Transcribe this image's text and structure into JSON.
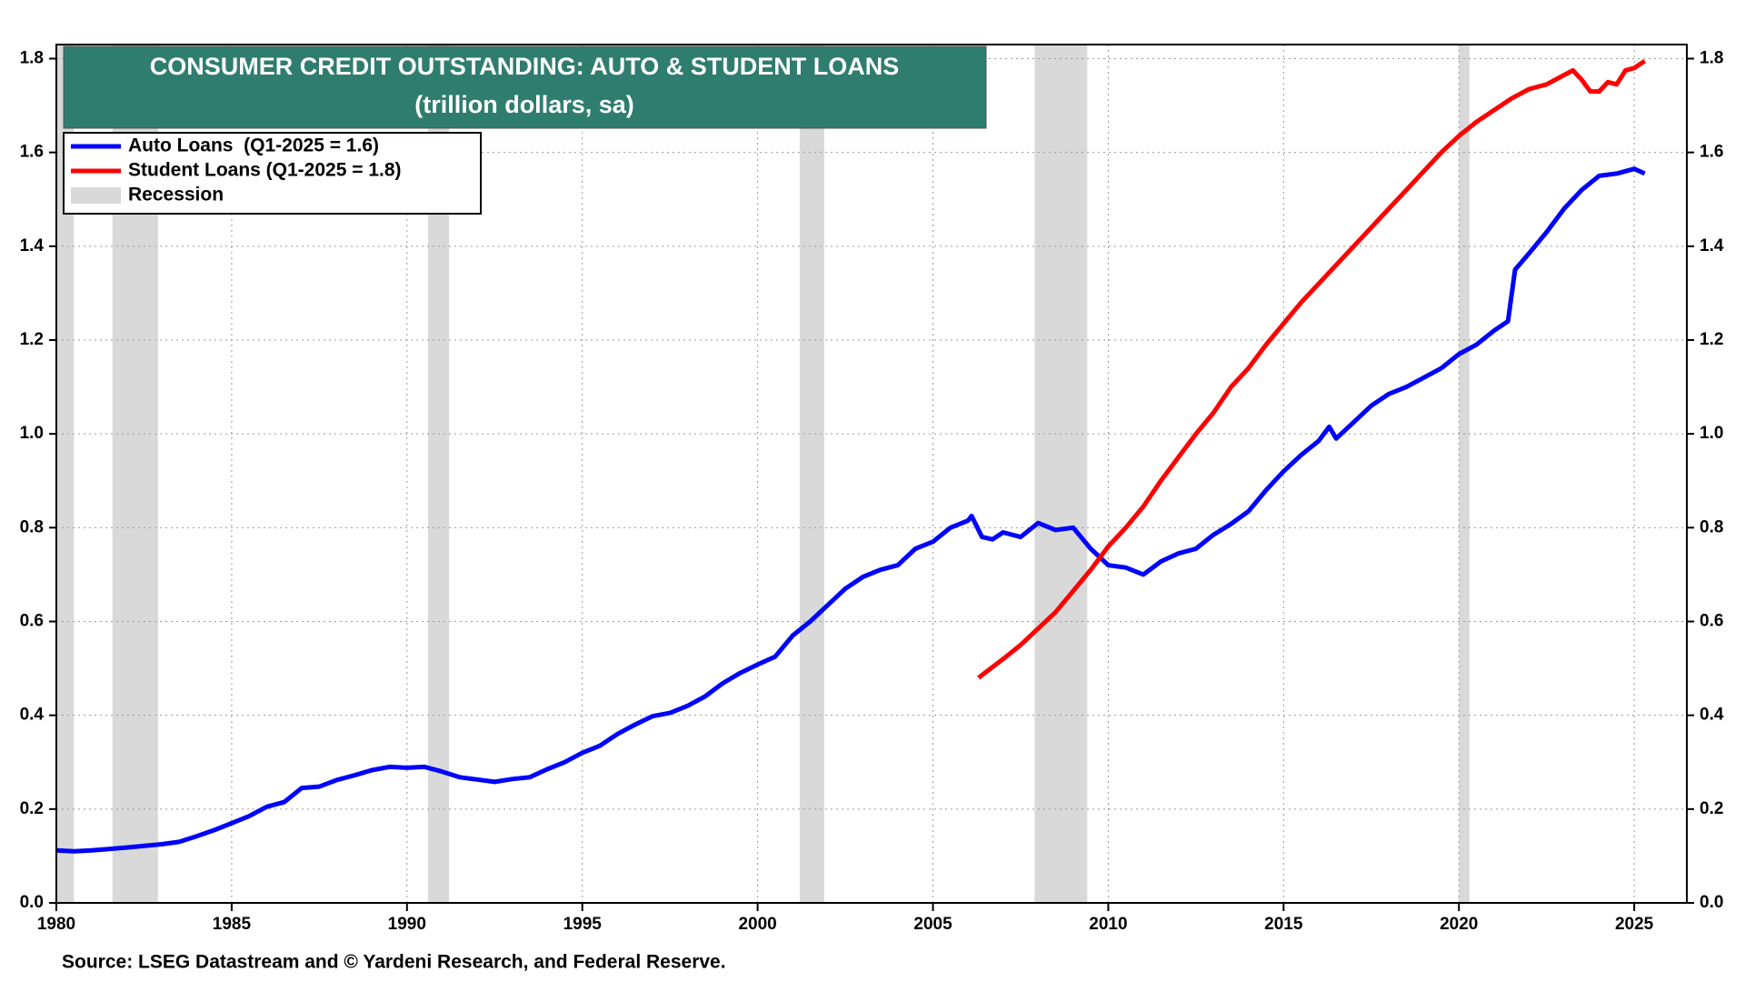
{
  "chart_data": {
    "type": "line",
    "title": "CONSUMER CREDIT OUTSTANDING: AUTO & STUDENT LOANS",
    "subtitle": "(trillion dollars, sa)",
    "source": "Source: LSEG Datastream and © Yardeni Research, and Federal Reserve.",
    "xlim": [
      1980,
      2026.5
    ],
    "xticks": [
      1980,
      1985,
      1990,
      1995,
      2000,
      2005,
      2010,
      2015,
      2020,
      2025
    ],
    "ylim": [
      0,
      1.83
    ],
    "yticks": [
      {
        "value": 0,
        "label": "0.0"
      },
      0.2,
      0.4,
      0.6,
      0.8,
      {
        "value": 1,
        "label": "1.0"
      },
      1.2,
      1.4,
      1.6,
      1.8
    ],
    "y2lim": [
      0,
      1.83
    ],
    "y2ticks": [
      {
        "value": 0,
        "label": "0.0"
      },
      0.2,
      0.4,
      0.6,
      0.8,
      {
        "value": 1,
        "label": "1.0"
      },
      1.2,
      1.4,
      1.6,
      1.8
    ],
    "grid": true,
    "legend": "upper left",
    "recession": {
      "name": "Recession",
      "color": "#d9d9d9",
      "periods": [
        [
          1980.0,
          1980.5
        ],
        [
          1981.6,
          1982.9
        ],
        [
          1990.6,
          1991.2
        ],
        [
          2001.2,
          2001.9
        ],
        [
          2007.9,
          2009.4
        ],
        [
          2020.0,
          2020.3
        ]
      ]
    },
    "series": [
      {
        "name": "Auto Loans  (Q1-2025 = 1.6)",
        "color": "#0000ff",
        "x": [
          1980.0,
          1980.5,
          1981.0,
          1981.5,
          1982.0,
          1983.0,
          1983.5,
          1984.0,
          1984.5,
          1985.0,
          1985.5,
          1986.0,
          1986.5,
          1987.0,
          1987.5,
          1988.0,
          1988.5,
          1989.0,
          1989.5,
          1990.0,
          1990.5,
          1991.0,
          1991.5,
          1992.0,
          1992.5,
          1993.0,
          1993.5,
          1994.0,
          1994.5,
          1995.0,
          1995.5,
          1996.0,
          1996.5,
          1997.0,
          1997.5,
          1998.0,
          1998.5,
          1999.0,
          1999.5,
          2000.0,
          2000.5,
          2001.0,
          2001.5,
          2002.0,
          2002.5,
          2003.0,
          2003.5,
          2004.0,
          2004.5,
          2005.0,
          2005.5,
          2006.0,
          2006.1,
          2006.4,
          2006.7,
          2007.0,
          2007.5,
          2008.0,
          2008.5,
          2009.0,
          2009.5,
          2010.0,
          2010.5,
          2011.0,
          2011.5,
          2012.0,
          2012.5,
          2013.0,
          2013.5,
          2014.0,
          2014.5,
          2015.0,
          2015.5,
          2016.0,
          2016.3,
          2016.5,
          2017.0,
          2017.5,
          2018.0,
          2018.5,
          2019.0,
          2019.5,
          2020.0,
          2020.5,
          2021.0,
          2021.4,
          2021.6,
          2022.0,
          2022.5,
          2023.0,
          2023.5,
          2024.0,
          2024.5,
          2025.0,
          2025.3
        ],
        "values": [
          0.112,
          0.11,
          0.112,
          0.115,
          0.118,
          0.125,
          0.13,
          0.142,
          0.155,
          0.17,
          0.185,
          0.205,
          0.215,
          0.245,
          0.248,
          0.262,
          0.272,
          0.283,
          0.29,
          0.288,
          0.29,
          0.28,
          0.268,
          0.263,
          0.258,
          0.264,
          0.268,
          0.285,
          0.3,
          0.32,
          0.335,
          0.36,
          0.38,
          0.398,
          0.405,
          0.42,
          0.44,
          0.468,
          0.49,
          0.508,
          0.525,
          0.57,
          0.6,
          0.635,
          0.67,
          0.695,
          0.71,
          0.72,
          0.755,
          0.77,
          0.8,
          0.815,
          0.825,
          0.78,
          0.775,
          0.79,
          0.78,
          0.81,
          0.795,
          0.8,
          0.755,
          0.72,
          0.715,
          0.7,
          0.728,
          0.745,
          0.755,
          0.785,
          0.808,
          0.835,
          0.88,
          0.92,
          0.955,
          0.985,
          1.015,
          0.99,
          1.025,
          1.06,
          1.085,
          1.1,
          1.12,
          1.14,
          1.17,
          1.19,
          1.22,
          1.24,
          1.35,
          1.385,
          1.43,
          1.48,
          1.52,
          1.55,
          1.555,
          1.565,
          1.555
        ]
      },
      {
        "name": "Student Loans (Q1-2025 = 1.8)",
        "color": "#ff0000",
        "axis": "y2",
        "x": [
          2006.3,
          2007.0,
          2007.5,
          2008.0,
          2008.5,
          2009.0,
          2009.5,
          2010.0,
          2010.5,
          2011.0,
          2011.5,
          2012.0,
          2012.5,
          2013.0,
          2013.5,
          2014.0,
          2014.5,
          2015.0,
          2015.5,
          2016.0,
          2016.5,
          2017.0,
          2017.5,
          2018.0,
          2018.5,
          2019.0,
          2019.5,
          2020.0,
          2020.5,
          2021.0,
          2021.5,
          2022.0,
          2022.5,
          2023.0,
          2023.25,
          2023.5,
          2023.75,
          2024.0,
          2024.25,
          2024.5,
          2024.75,
          2025.0,
          2025.3
        ],
        "values": [
          0.48,
          0.52,
          0.55,
          0.585,
          0.62,
          0.665,
          0.71,
          0.76,
          0.8,
          0.845,
          0.9,
          0.95,
          1.0,
          1.045,
          1.1,
          1.14,
          1.19,
          1.235,
          1.28,
          1.32,
          1.36,
          1.4,
          1.44,
          1.48,
          1.52,
          1.56,
          1.6,
          1.635,
          1.665,
          1.69,
          1.715,
          1.735,
          1.745,
          1.765,
          1.775,
          1.755,
          1.73,
          1.73,
          1.75,
          1.745,
          1.775,
          1.78,
          1.795
        ]
      }
    ]
  }
}
